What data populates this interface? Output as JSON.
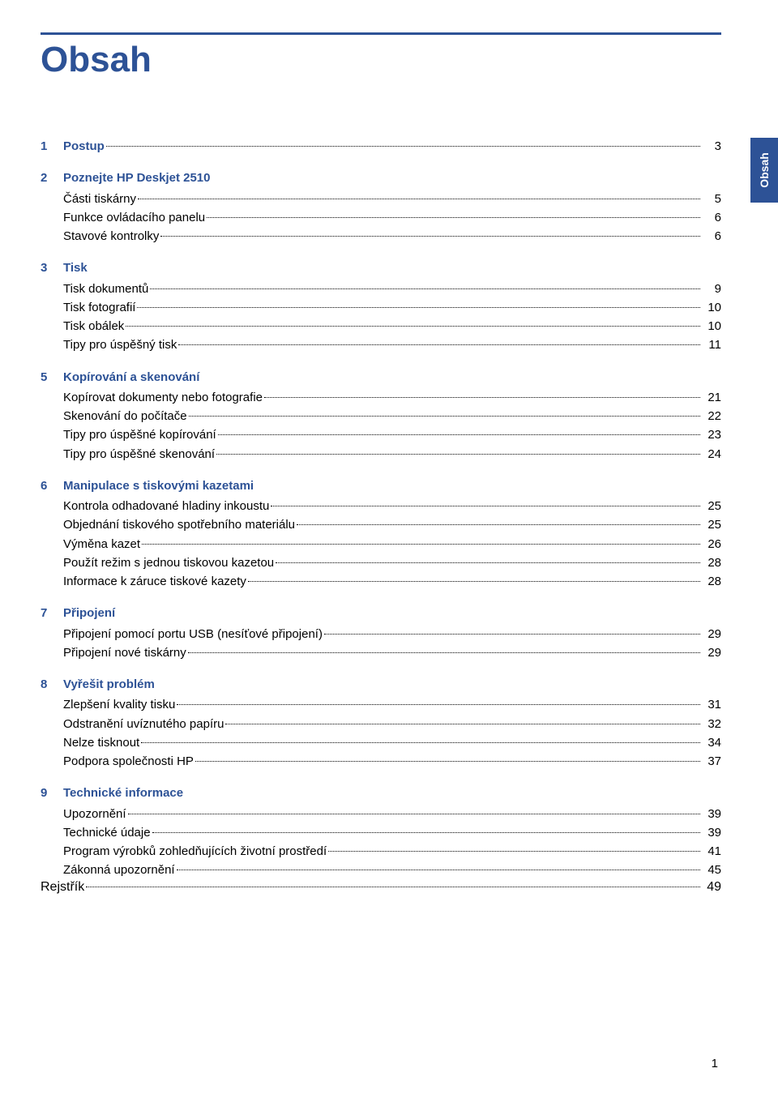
{
  "colors": {
    "brand": "#2d5296",
    "text": "#000000",
    "background": "#ffffff"
  },
  "typography": {
    "base_font": "Arial, Helvetica, sans-serif",
    "base_size": 15,
    "title_size": 44
  },
  "sidebarTab": "Obsah",
  "title": "Obsah",
  "pageNumber": "1",
  "sections": [
    {
      "num": "1",
      "title": "Postup",
      "titleIsEntry": true,
      "titlePage": "3",
      "entries": []
    },
    {
      "num": "2",
      "title": "Poznejte HP Deskjet 2510",
      "entries": [
        {
          "label": "Části tiskárny",
          "page": "5"
        },
        {
          "label": "Funkce ovládacího panelu",
          "page": "6"
        },
        {
          "label": "Stavové kontrolky",
          "page": "6"
        }
      ]
    },
    {
      "num": "3",
      "title": "Tisk",
      "entries": [
        {
          "label": "Tisk dokumentů",
          "page": "9"
        },
        {
          "label": "Tisk fotografií",
          "page": "10"
        },
        {
          "label": "Tisk obálek",
          "page": "10"
        },
        {
          "label": "Tipy pro úspěšný tisk",
          "page": "11"
        }
      ]
    },
    {
      "num": "5",
      "title": "Kopírování a skenování",
      "entries": [
        {
          "label": "Kopírovat dokumenty nebo fotografie",
          "page": "21"
        },
        {
          "label": "Skenování do počítače",
          "page": "22"
        },
        {
          "label": "Tipy pro úspěšné kopírování",
          "page": "23"
        },
        {
          "label": "Tipy pro úspěšné skenování",
          "page": "24"
        }
      ]
    },
    {
      "num": "6",
      "title": "Manipulace s tiskovými kazetami",
      "entries": [
        {
          "label": "Kontrola odhadované hladiny inkoustu",
          "page": "25"
        },
        {
          "label": "Objednání tiskového spotřebního materiálu",
          "page": "25"
        },
        {
          "label": "Výměna kazet",
          "page": "26"
        },
        {
          "label": "Použít režim s jednou tiskovou kazetou",
          "page": "28"
        },
        {
          "label": "Informace k záruce tiskové kazety",
          "page": "28"
        }
      ]
    },
    {
      "num": "7",
      "title": "Připojení",
      "entries": [
        {
          "label": "Připojení pomocí portu USB (nesíťové připojení)",
          "page": "29"
        },
        {
          "label": "Připojení nové tiskárny",
          "page": "29"
        }
      ]
    },
    {
      "num": "8",
      "title": "Vyřešit problém",
      "entries": [
        {
          "label": "Zlepšení kvality tisku",
          "page": "31"
        },
        {
          "label": "Odstranění uvíznutého papíru",
          "page": "32"
        },
        {
          "label": "Nelze tisknout",
          "page": "34"
        },
        {
          "label": "Podpora společnosti HP",
          "page": "37"
        }
      ]
    },
    {
      "num": "9",
      "title": "Technické informace",
      "entries": [
        {
          "label": "Upozornění",
          "page": "39"
        },
        {
          "label": "Technické údaje",
          "page": "39"
        },
        {
          "label": "Program výrobků zohledňujících životní prostředí",
          "page": "41"
        },
        {
          "label": "Zákonná upozornění",
          "page": "45"
        }
      ]
    }
  ],
  "rejstrik": {
    "label": "Rejstřík",
    "page": "49"
  }
}
